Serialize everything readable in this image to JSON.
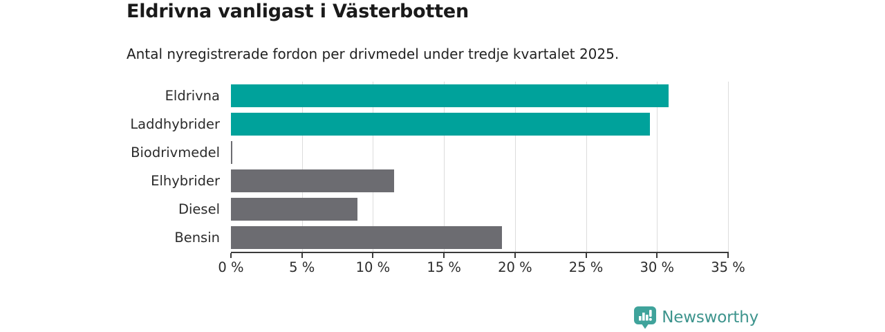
{
  "header": {
    "title": "Eldrivna vanligast i Västerbotten",
    "subtitle": "Antal nyregistrerade fordon per drivmedel under tredje kvartalet 2025."
  },
  "chart_data": {
    "type": "bar",
    "orientation": "horizontal",
    "title": "Eldrivna vanligast i Västerbotten",
    "subtitle": "Antal nyregistrerade fordon per drivmedel under tredje kvartalet 2025.",
    "categories": [
      "Eldrivna",
      "Laddhybrider",
      "Biodrivmedel",
      "Elhybrider",
      "Diesel",
      "Bensin"
    ],
    "values": [
      30.8,
      29.5,
      0.1,
      11.5,
      8.9,
      19.1
    ],
    "unit": "%",
    "bar_colors": [
      "#00a29b",
      "#00a29b",
      "#6c6c71",
      "#6c6c71",
      "#6c6c71",
      "#6c6c71"
    ],
    "xlabel": "",
    "ylabel": "",
    "xlim": [
      0,
      35
    ],
    "x_ticks": [
      0,
      5,
      10,
      15,
      20,
      25,
      30,
      35
    ],
    "x_tick_labels": [
      "0 %",
      "5 %",
      "10 %",
      "15 %",
      "20 %",
      "25 %",
      "30 %",
      "35 %"
    ],
    "grid": "vertical-gridlines-on",
    "legend": "none"
  },
  "branding": {
    "logo_text": "Newsworthy",
    "logo_icon": "newsworthy-bar-chart-bubble-icon",
    "icon_color": "#3fa39b",
    "text_color": "#3d948d"
  },
  "colors": {
    "accent_teal": "#00a29b",
    "bar_gray": "#6c6c71",
    "gridline": "#dcdcdc",
    "axis": "#3a3a3a",
    "title_text": "#1a1a1a",
    "body_text": "#2b2b2b",
    "background": "#ffffff"
  }
}
